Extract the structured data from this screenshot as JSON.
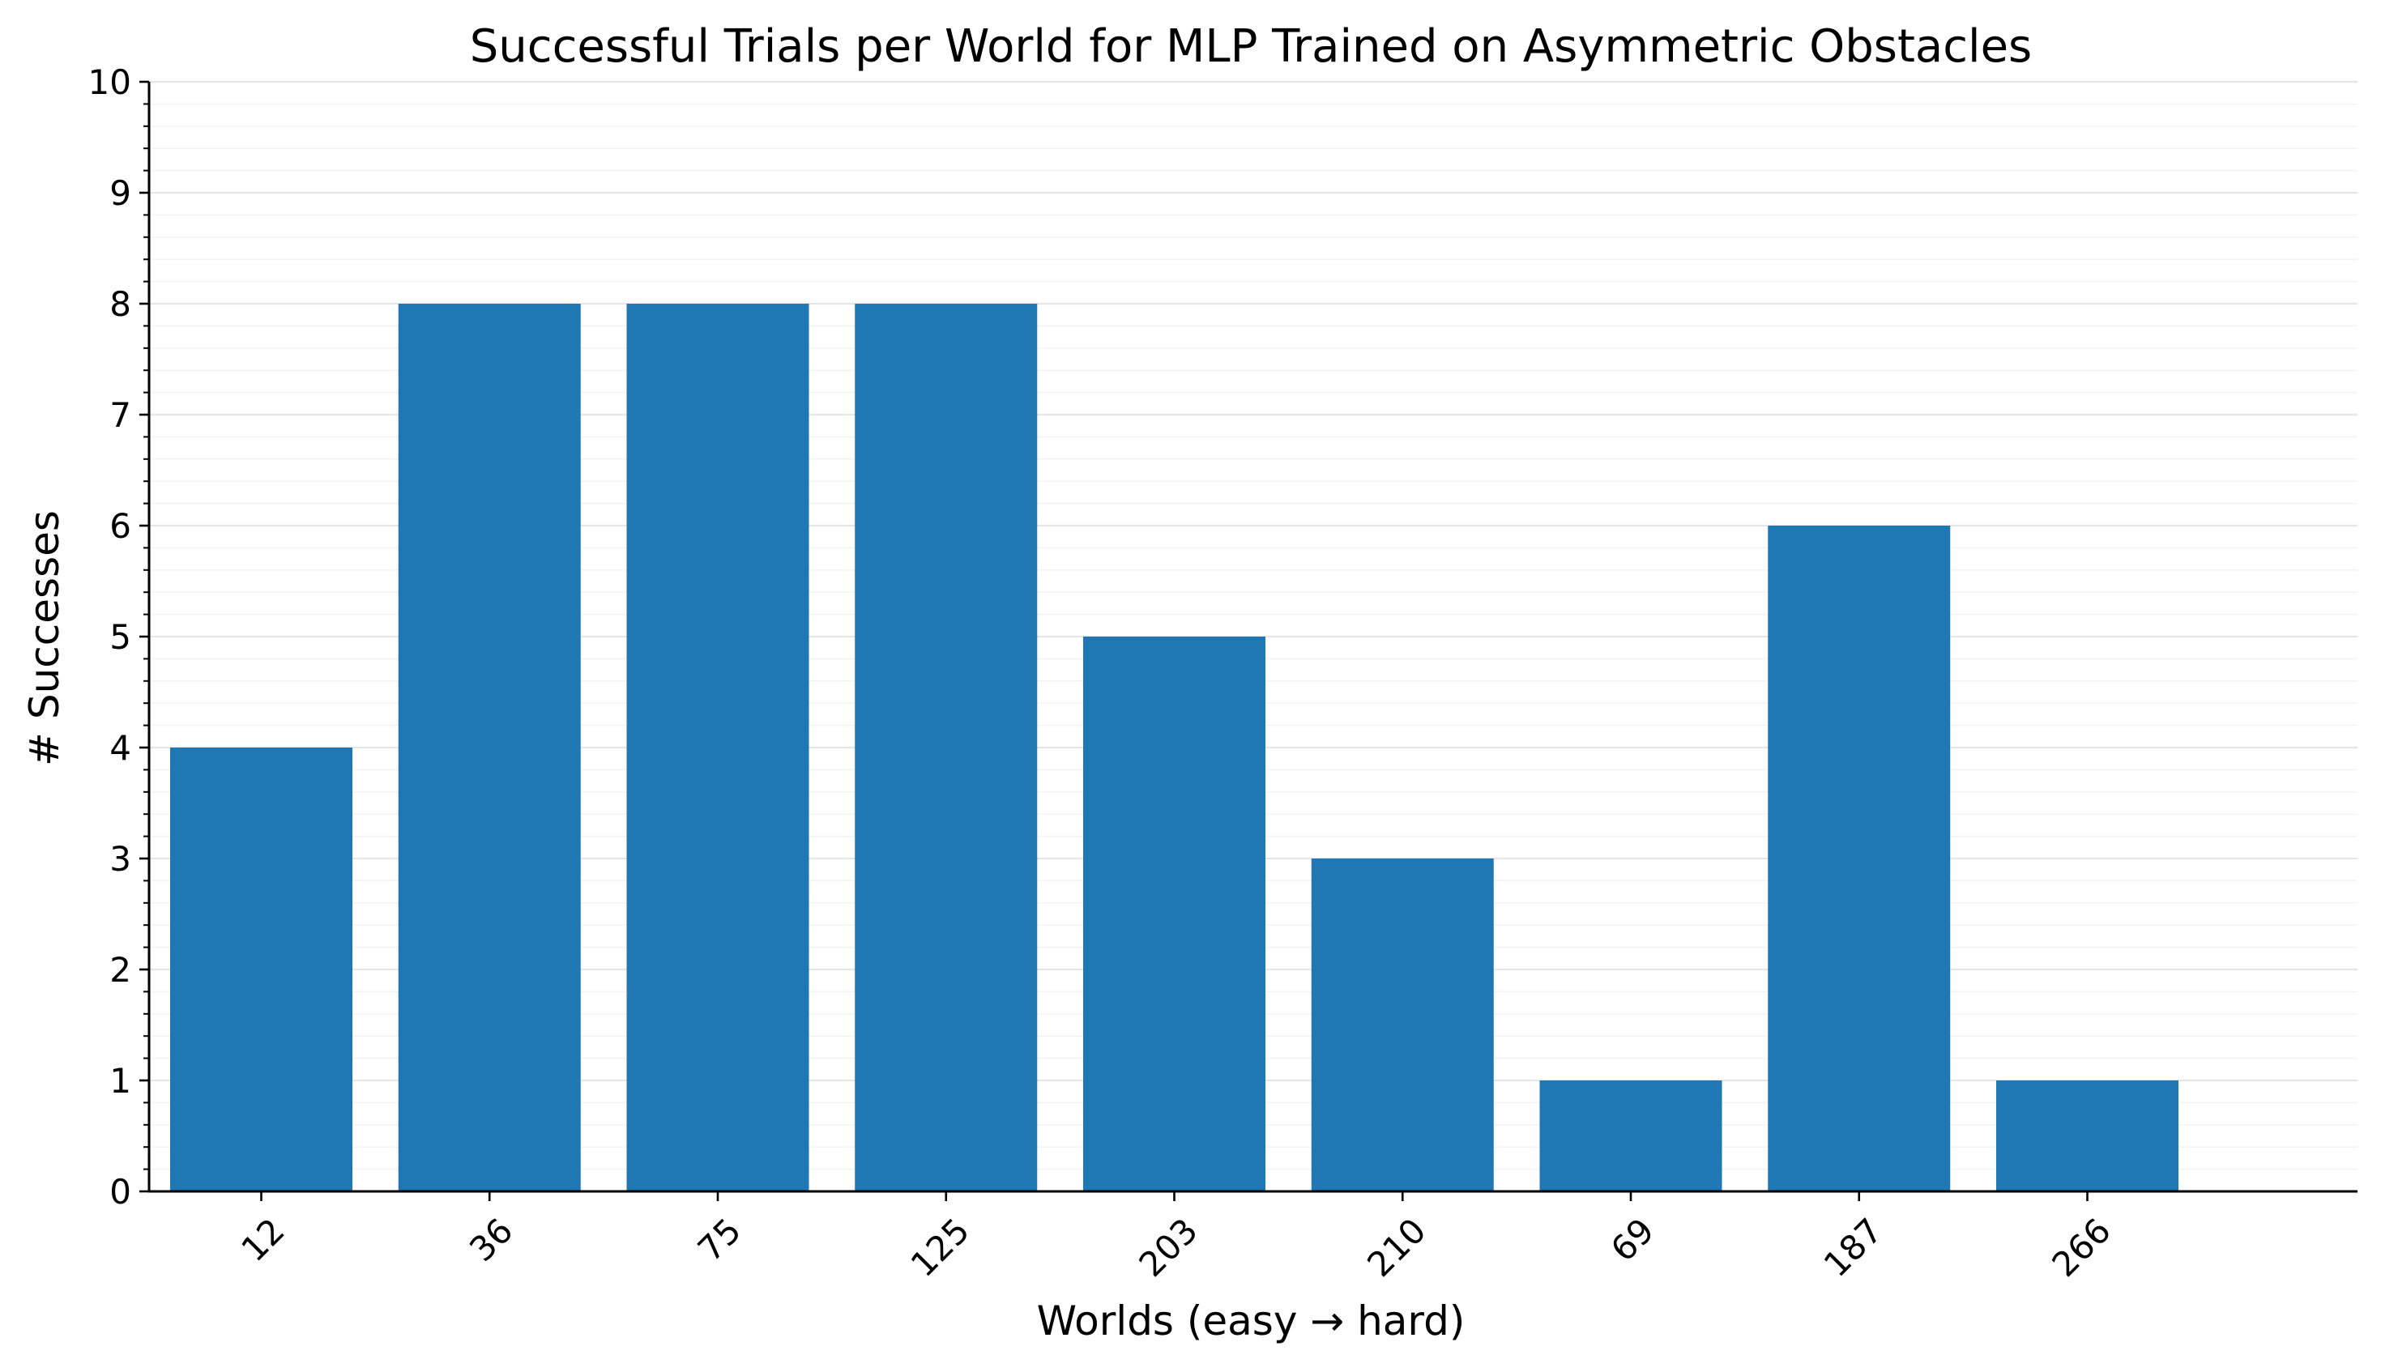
{
  "chart_data": {
    "type": "bar",
    "title": "Successful Trials per World for MLP Trained on Asymmetric Obstacles",
    "xlabel": "Worlds (easy → hard)",
    "ylabel": "# Successes",
    "categories": [
      "12",
      "36",
      "75",
      "125",
      "203",
      "210",
      "69",
      "187",
      "266"
    ],
    "values": [
      4,
      8,
      8,
      8,
      5,
      3,
      1,
      6,
      1
    ],
    "ylim": [
      0,
      10
    ],
    "yticks": [
      0,
      1,
      2,
      3,
      4,
      5,
      6,
      7,
      8,
      9,
      10
    ],
    "grid": "horizontal, major and minor",
    "x_tick_rotation": "45 degrees",
    "bar_color": "#1f77b4",
    "grid_color": "#e6e6e6",
    "minor_grid_color": "#f3f3f3",
    "axis_color": "#000000"
  }
}
